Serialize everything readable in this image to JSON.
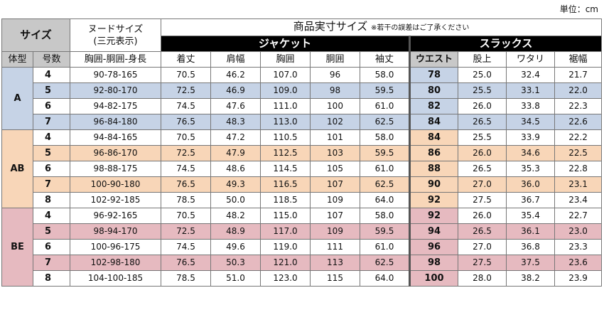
{
  "unit_label": "単位：cm",
  "header": {
    "size": "サイズ",
    "nude_line1": "ヌードサイズ",
    "nude_line2": "(三元表示)",
    "product_title": "商品実寸サイズ",
    "product_note": "※若干の誤差はご了承ください",
    "jacket": "ジャケット",
    "slacks": "スラックス",
    "cols": {
      "type": "体型",
      "number": "号数",
      "nude": "胸囲-胴囲-身長",
      "length": "着丈",
      "shoulder": "肩幅",
      "chest": "胸囲",
      "waist_j": "胴囲",
      "sleeve": "袖丈",
      "waist": "ウエスト",
      "rise": "股上",
      "thigh": "ワタリ",
      "hem": "裾幅"
    }
  },
  "groups": [
    {
      "type": "A",
      "rows": [
        {
          "n": "4",
          "nude": "90-78-165",
          "len": "70.5",
          "sh": "46.2",
          "ch": "107.0",
          "wj": "96",
          "sl": "58.0",
          "w": "78",
          "r": "25.0",
          "t": "32.4",
          "h": "21.7"
        },
        {
          "n": "5",
          "nude": "92-80-170",
          "len": "72.5",
          "sh": "46.9",
          "ch": "109.0",
          "wj": "98",
          "sl": "59.5",
          "w": "80",
          "r": "25.5",
          "t": "33.1",
          "h": "22.0"
        },
        {
          "n": "6",
          "nude": "94-82-175",
          "len": "74.5",
          "sh": "47.6",
          "ch": "111.0",
          "wj": "100",
          "sl": "61.0",
          "w": "82",
          "r": "26.0",
          "t": "33.8",
          "h": "22.3"
        },
        {
          "n": "7",
          "nude": "96-84-180",
          "len": "76.5",
          "sh": "48.3",
          "ch": "113.0",
          "wj": "102",
          "sl": "62.5",
          "w": "84",
          "r": "26.5",
          "t": "34.5",
          "h": "22.6"
        }
      ]
    },
    {
      "type": "AB",
      "rows": [
        {
          "n": "4",
          "nude": "94-84-165",
          "len": "70.5",
          "sh": "47.2",
          "ch": "110.5",
          "wj": "101",
          "sl": "58.0",
          "w": "84",
          "r": "25.5",
          "t": "33.9",
          "h": "22.2"
        },
        {
          "n": "5",
          "nude": "96-86-170",
          "len": "72.5",
          "sh": "47.9",
          "ch": "112.5",
          "wj": "103",
          "sl": "59.5",
          "w": "86",
          "r": "26.0",
          "t": "34.6",
          "h": "22.5"
        },
        {
          "n": "6",
          "nude": "98-88-175",
          "len": "74.5",
          "sh": "48.6",
          "ch": "114.5",
          "wj": "105",
          "sl": "61.0",
          "w": "88",
          "r": "26.5",
          "t": "35.3",
          "h": "22.8"
        },
        {
          "n": "7",
          "nude": "100-90-180",
          "len": "76.5",
          "sh": "49.3",
          "ch": "116.5",
          "wj": "107",
          "sl": "62.5",
          "w": "90",
          "r": "27.0",
          "t": "36.0",
          "h": "23.1"
        },
        {
          "n": "8",
          "nude": "102-92-185",
          "len": "78.5",
          "sh": "50.0",
          "ch": "118.5",
          "wj": "109",
          "sl": "64.0",
          "w": "92",
          "r": "27.5",
          "t": "36.7",
          "h": "23.4"
        }
      ]
    },
    {
      "type": "BE",
      "rows": [
        {
          "n": "4",
          "nude": "96-92-165",
          "len": "70.5",
          "sh": "48.2",
          "ch": "115.0",
          "wj": "107",
          "sl": "58.0",
          "w": "92",
          "r": "26.0",
          "t": "35.4",
          "h": "22.7"
        },
        {
          "n": "5",
          "nude": "98-94-170",
          "len": "72.5",
          "sh": "48.9",
          "ch": "117.0",
          "wj": "109",
          "sl": "59.5",
          "w": "94",
          "r": "26.5",
          "t": "36.1",
          "h": "23.0"
        },
        {
          "n": "6",
          "nude": "100-96-175",
          "len": "74.5",
          "sh": "49.6",
          "ch": "119.0",
          "wj": "111",
          "sl": "61.0",
          "w": "96",
          "r": "27.0",
          "t": "36.8",
          "h": "23.3"
        },
        {
          "n": "7",
          "nude": "102-98-180",
          "len": "76.5",
          "sh": "50.3",
          "ch": "121.0",
          "wj": "113",
          "sl": "62.5",
          "w": "98",
          "r": "27.5",
          "t": "37.5",
          "h": "23.6"
        },
        {
          "n": "8",
          "nude": "104-100-185",
          "len": "78.5",
          "sh": "51.0",
          "ch": "123.0",
          "wj": "115",
          "sl": "64.0",
          "w": "100",
          "r": "28.0",
          "t": "38.2",
          "h": "23.9"
        }
      ]
    }
  ]
}
